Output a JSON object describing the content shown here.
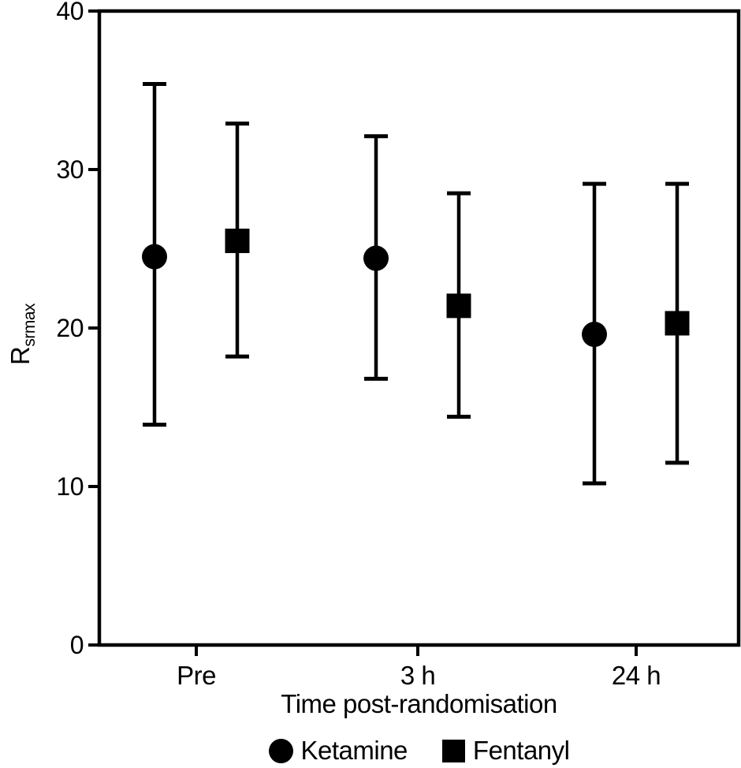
{
  "figure": {
    "background": "#ffffff",
    "ink": "#000000"
  },
  "chart_data": {
    "type": "errorbar",
    "title": "",
    "x_label": "Time post-randomisation",
    "y_label_main": "R",
    "y_label_sub": "srmax",
    "categories": [
      "Pre",
      "3 h",
      "24 h"
    ],
    "yticks": [
      0,
      10,
      20,
      30,
      40
    ],
    "ylim": [
      0,
      40
    ],
    "grid": false,
    "legend_position": "bottom",
    "series": [
      {
        "name": "Ketamine",
        "marker": "circle",
        "means": [
          24.5,
          24.4,
          19.6
        ],
        "lower": [
          13.9,
          16.8,
          10.2
        ],
        "upper": [
          35.4,
          32.1,
          29.1
        ]
      },
      {
        "name": "Fentanyl",
        "marker": "square",
        "means": [
          25.5,
          21.4,
          20.3
        ],
        "lower": [
          18.2,
          14.4,
          11.5
        ],
        "upper": [
          32.9,
          28.5,
          29.1
        ]
      }
    ]
  },
  "legend": {
    "items": [
      {
        "label": "Ketamine",
        "marker": "circle"
      },
      {
        "label": "Fentanyl",
        "marker": "square"
      }
    ]
  }
}
